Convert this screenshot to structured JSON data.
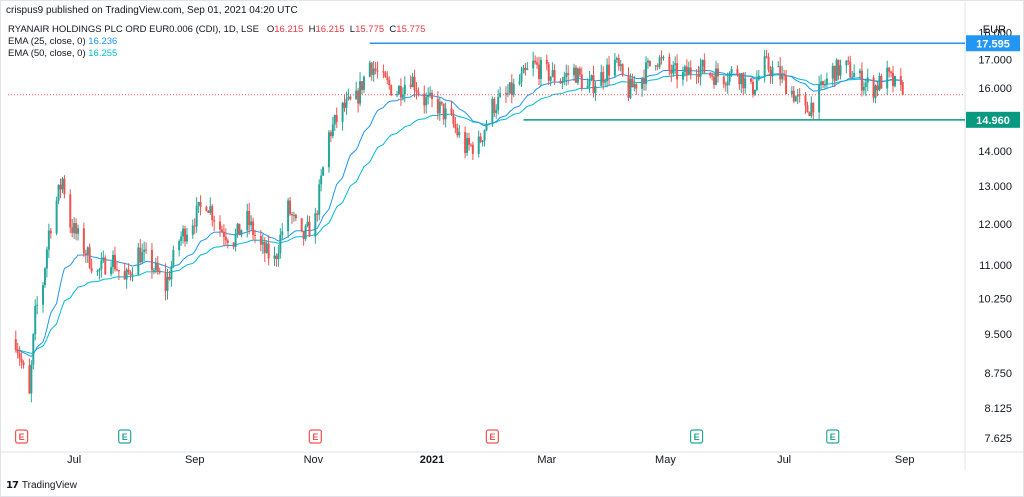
{
  "header": {
    "published": "crispus9 published on TradingView.com, Sep 01, 2021 04:20 UTC"
  },
  "legend": {
    "symbol": "RYANAIR HOLDINGS PLC ORD EUR0.006 (CDI), 1D, LSE",
    "ohlc": [
      {
        "k": "O",
        "v": "16.215"
      },
      {
        "k": "H",
        "v": "16.215"
      },
      {
        "k": "L",
        "v": "15.775"
      },
      {
        "k": "C",
        "v": "15.775"
      }
    ],
    "ema25_label": "EMA (25, close, 0)",
    "ema25_value": "16.236",
    "ema50_label": "EMA (50, close, 0)",
    "ema50_value": "16.255"
  },
  "currency": "EUR",
  "footer": {
    "brand": "TradingView"
  },
  "colors": {
    "up": "#26a69a",
    "down": "#ef5350",
    "ema25": "#2196f3",
    "ema50": "#00bcd4",
    "resistance": "#2196f3",
    "support": "#089981"
  },
  "chart_data": {
    "type": "candlestick",
    "y_scale": "log",
    "ylim": [
      7.4,
      18.8
    ],
    "y_ticks": [
      "7.625",
      "8.125",
      "8.750",
      "9.500",
      "10.250",
      "11.000",
      "12.000",
      "13.000",
      "14.000",
      "15.000",
      "16.000",
      "17.000",
      "18.000"
    ],
    "x_ticks": [
      "Jul",
      "Sep",
      "Nov",
      "2021",
      "Mar",
      "May",
      "Jul",
      "Sep"
    ],
    "resistance": {
      "value": 17.595,
      "label": "17.595"
    },
    "support": {
      "value": 14.96,
      "label": "14.960"
    },
    "last_price": 15.775,
    "earnings_markers": [
      "E",
      "E",
      "E",
      "E",
      "E",
      "E"
    ],
    "trend": [
      [
        "2020-06-01",
        9.4
      ],
      [
        "2020-06-08",
        8.3
      ],
      [
        "2020-06-11",
        9.9
      ],
      [
        "2020-06-15",
        10.6
      ],
      [
        "2020-06-18",
        11.8
      ],
      [
        "2020-06-22",
        12.6
      ],
      [
        "2020-06-25",
        13.2
      ],
      [
        "2020-06-29",
        12.0
      ],
      [
        "2020-07-06",
        11.4
      ],
      [
        "2020-07-13",
        10.8
      ],
      [
        "2020-07-20",
        11.2
      ],
      [
        "2020-07-27",
        10.6
      ],
      [
        "2020-08-03",
        11.3
      ],
      [
        "2020-08-10",
        11.0
      ],
      [
        "2020-08-17",
        10.5
      ],
      [
        "2020-08-24",
        11.6
      ],
      [
        "2020-08-31",
        12.1
      ],
      [
        "2020-09-07",
        12.6
      ],
      [
        "2020-09-14",
        11.9
      ],
      [
        "2020-09-21",
        11.6
      ],
      [
        "2020-09-28",
        12.1
      ],
      [
        "2020-10-05",
        11.4
      ],
      [
        "2020-10-12",
        11.1
      ],
      [
        "2020-10-19",
        12.4
      ],
      [
        "2020-10-26",
        11.6
      ],
      [
        "2020-11-02",
        12.1
      ],
      [
        "2020-11-09",
        14.5
      ],
      [
        "2020-11-16",
        15.3
      ],
      [
        "2020-11-23",
        15.6
      ],
      [
        "2020-11-30",
        16.9
      ],
      [
        "2020-12-07",
        16.2
      ],
      [
        "2020-12-14",
        15.9
      ],
      [
        "2020-12-21",
        16.4
      ],
      [
        "2020-12-28",
        15.6
      ],
      [
        "2021-01-04",
        15.4
      ],
      [
        "2021-01-11",
        14.9
      ],
      [
        "2021-01-18",
        14.1
      ],
      [
        "2021-01-25",
        14.2
      ],
      [
        "2021-02-01",
        15.4
      ],
      [
        "2021-02-08",
        15.7
      ],
      [
        "2021-02-15",
        16.2
      ],
      [
        "2021-02-22",
        16.8
      ],
      [
        "2021-03-01",
        16.5
      ],
      [
        "2021-03-08",
        16.3
      ],
      [
        "2021-03-15",
        16.6
      ],
      [
        "2021-03-22",
        16.0
      ],
      [
        "2021-03-29",
        16.4
      ],
      [
        "2021-04-05",
        16.9
      ],
      [
        "2021-04-12",
        15.9
      ],
      [
        "2021-04-19",
        16.4
      ],
      [
        "2021-04-26",
        17.1
      ],
      [
        "2021-05-03",
        16.6
      ],
      [
        "2021-05-10",
        16.4
      ],
      [
        "2021-05-17",
        16.8
      ],
      [
        "2021-05-24",
        16.5
      ],
      [
        "2021-05-31",
        16.4
      ],
      [
        "2021-06-07",
        16.6
      ],
      [
        "2021-06-14",
        15.9
      ],
      [
        "2021-06-21",
        16.8
      ],
      [
        "2021-06-28",
        16.5
      ],
      [
        "2021-07-05",
        15.9
      ],
      [
        "2021-07-12",
        15.2
      ],
      [
        "2021-07-19",
        15.8
      ],
      [
        "2021-07-26",
        16.6
      ],
      [
        "2021-08-02",
        16.7
      ],
      [
        "2021-08-09",
        16.3
      ],
      [
        "2021-08-16",
        16.0
      ],
      [
        "2021-08-23",
        16.4
      ],
      [
        "2021-08-31",
        15.775
      ]
    ]
  }
}
